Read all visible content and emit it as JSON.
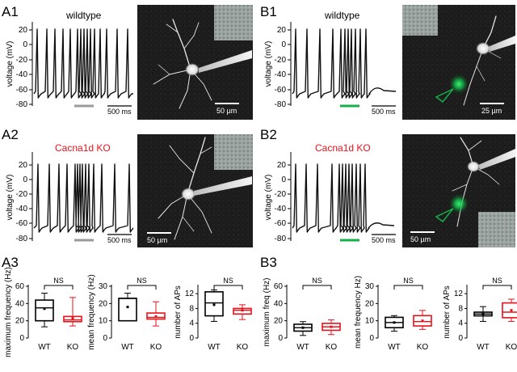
{
  "labels": {
    "A1": "A1",
    "A2": "A2",
    "A3": "A3",
    "B1": "B1",
    "B2": "B2",
    "B3": "B3"
  },
  "conditions": {
    "wildtype": "wildtype",
    "ko": "Cacna1d KO"
  },
  "colors": {
    "wildtype": "#000000",
    "ko": "#e8121a",
    "stim_grey": "#9a9a9a",
    "stim_green": "#14b04a",
    "trace": "#111111"
  },
  "trace_axis": {
    "ylabel": "voltage (mV)",
    "ticks": [
      "20",
      "0",
      "-20",
      "-40",
      "-60",
      "-80"
    ],
    "time_scalebar": "500 ms"
  },
  "scalebars": {
    "A1": "50 µm",
    "A2": "50 µm",
    "B1": "25 µm",
    "B2": "50 µm"
  },
  "chart_data": [
    {
      "type": "box",
      "panel": "A3",
      "ylabel": "maximum frequency (Hz)",
      "ylim": [
        0,
        60
      ],
      "yticks": [
        "0",
        "20",
        "40",
        "60"
      ],
      "categories": [
        "WT",
        "KO"
      ],
      "significance": "NS",
      "boxes": [
        {
          "name": "WT",
          "min": 13,
          "q1": 20,
          "median": 35,
          "q3": 44,
          "max": 52,
          "mean": 34
        },
        {
          "name": "KO",
          "min": 14,
          "q1": 19,
          "median": 21,
          "q3": 25,
          "max": 47,
          "mean": 23
        }
      ]
    },
    {
      "type": "box",
      "panel": "A3",
      "ylabel": "mean frequency (Hz)",
      "ylim": [
        0,
        30
      ],
      "yticks": [
        "0",
        "10",
        "20",
        "30"
      ],
      "categories": [
        "WT",
        "KO"
      ],
      "significance": "NS",
      "boxes": [
        {
          "name": "WT",
          "min": 10,
          "q1": 10,
          "median": 23,
          "q3": 23,
          "max": 26,
          "mean": 18
        },
        {
          "name": "KO",
          "min": 7,
          "q1": 11,
          "median": 12,
          "q3": 14.5,
          "max": 21,
          "mean": 12.5
        }
      ]
    },
    {
      "type": "box",
      "panel": "A3",
      "ylabel": "number of APs",
      "ylim": [
        0,
        14
      ],
      "yticks": [
        "0",
        "4",
        "8",
        "12"
      ],
      "categories": [
        "WT",
        "KO"
      ],
      "significance": "NS",
      "boxes": [
        {
          "name": "WT",
          "min": 4.5,
          "q1": 6,
          "median": 9.5,
          "q3": 12.5,
          "max": 13,
          "mean": 9
        },
        {
          "name": "KO",
          "min": 5,
          "q1": 6.5,
          "median": 7.5,
          "q3": 8,
          "max": 9,
          "mean": 7.5
        }
      ]
    },
    {
      "type": "box",
      "panel": "B3",
      "ylabel": "maximum freq (Hz)",
      "ylim": [
        0,
        60
      ],
      "yticks": [
        "0",
        "20",
        "40",
        "60"
      ],
      "categories": [
        "WT",
        "KO"
      ],
      "significance": "NS",
      "boxes": [
        {
          "name": "WT",
          "min": 3,
          "q1": 8,
          "median": 12,
          "q3": 16,
          "max": 19,
          "mean": 12
        },
        {
          "name": "KO",
          "min": 4,
          "q1": 9,
          "median": 13,
          "q3": 17,
          "max": 21,
          "mean": 13
        }
      ]
    },
    {
      "type": "box",
      "panel": "B3",
      "ylabel": "mean frequency Hz)",
      "ylim": [
        0,
        30
      ],
      "yticks": [
        "0",
        "10",
        "20",
        "30"
      ],
      "categories": [
        "WT",
        "KO"
      ],
      "significance": "NS",
      "boxes": [
        {
          "name": "WT",
          "min": 4,
          "q1": 6,
          "median": 9,
          "q3": 12,
          "max": 13,
          "mean": 9
        },
        {
          "name": "KO",
          "min": 5,
          "q1": 7,
          "median": 9.5,
          "q3": 13,
          "max": 16,
          "mean": 10
        }
      ]
    },
    {
      "type": "box",
      "panel": "B3",
      "ylabel": "number of APs",
      "ylim": [
        0,
        14
      ],
      "yticks": [
        "0",
        "4",
        "8",
        "12"
      ],
      "categories": [
        "WT",
        "KO"
      ],
      "significance": "NS",
      "boxes": [
        {
          "name": "WT",
          "min": 4.5,
          "q1": 6,
          "median": 6.5,
          "q3": 7,
          "max": 8.5,
          "mean": 6.5
        },
        {
          "name": "KO",
          "min": 4.5,
          "q1": 5.5,
          "median": 7,
          "q3": 9.5,
          "max": 10.5,
          "mean": 7.5
        }
      ]
    }
  ]
}
